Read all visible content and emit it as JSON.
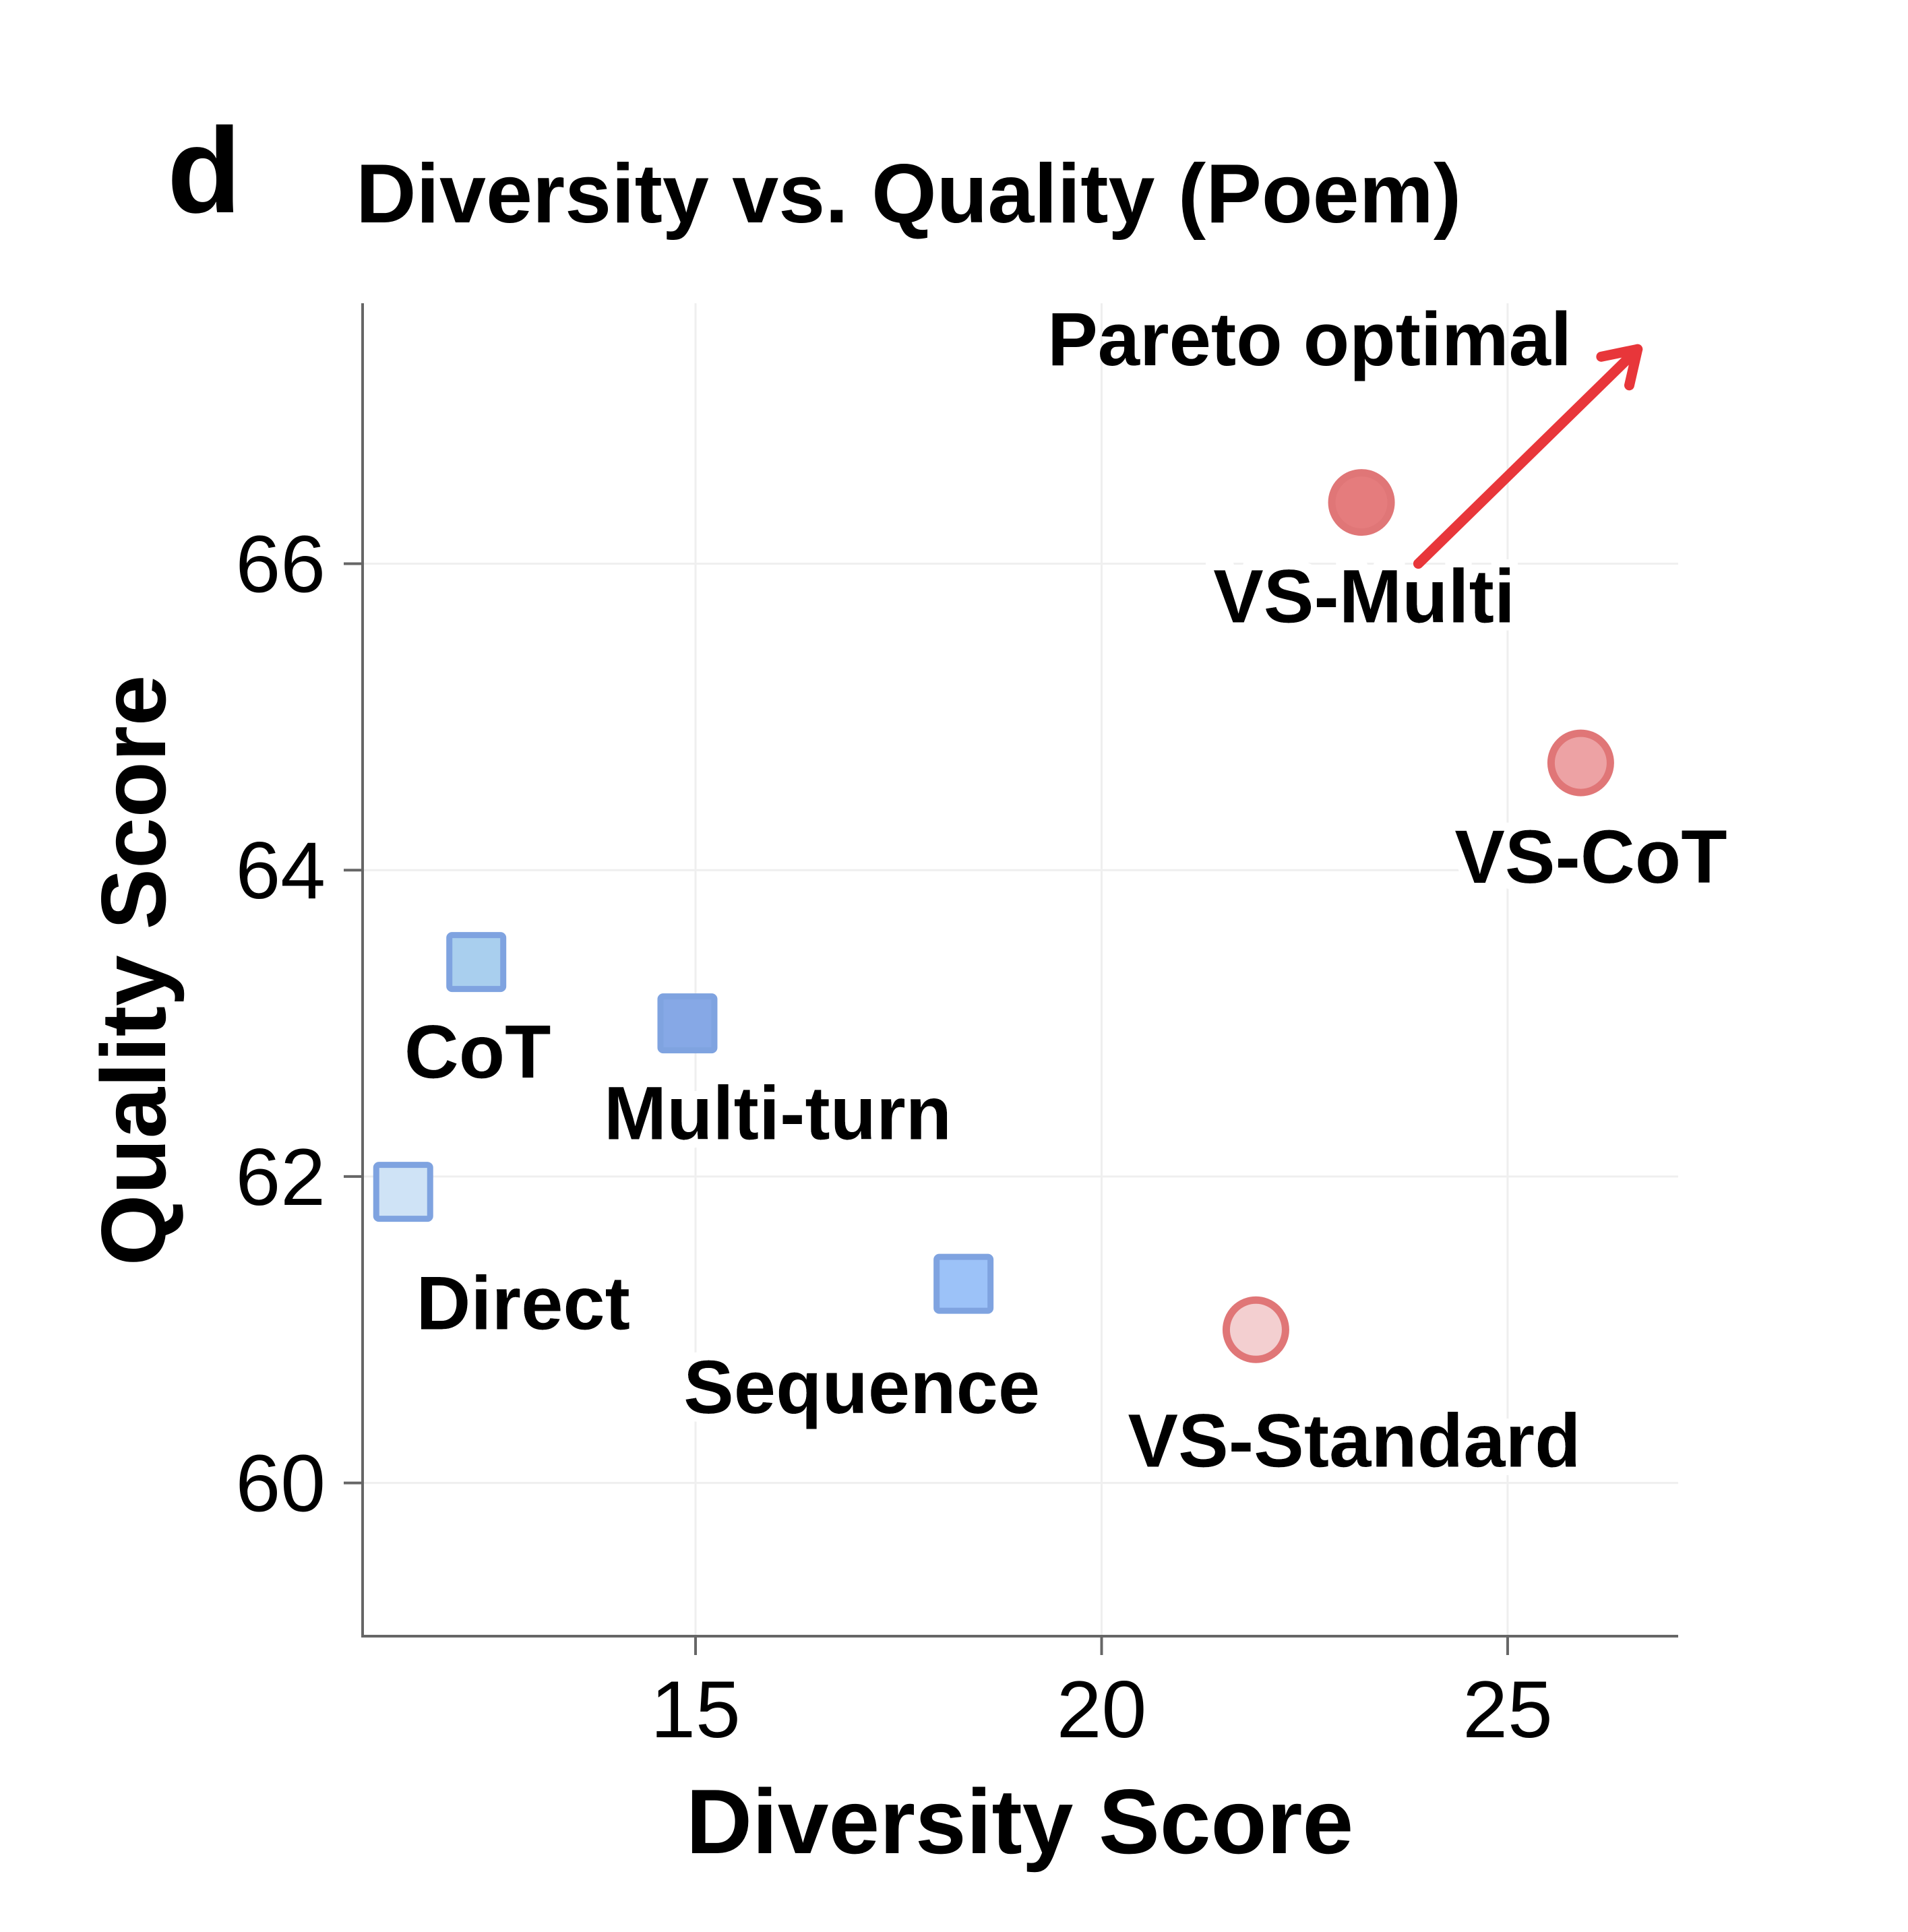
{
  "panel_letter": "d",
  "chart_data": {
    "type": "scatter",
    "title": "Diversity vs. Quality (Poem)",
    "xlabel": "Diversity Score",
    "ylabel": "Quality Score",
    "xlim": [
      10.9,
      27.1
    ],
    "ylim": [
      59.0,
      67.7
    ],
    "xticks": [
      15,
      20,
      25
    ],
    "yticks": [
      60,
      62,
      64,
      66
    ],
    "grid": true,
    "points": [
      {
        "label": "Direct",
        "x": 11.4,
        "y": 61.9,
        "marker": "square",
        "fill": "#cfe3f6",
        "edge": "#7fa3e0"
      },
      {
        "label": "CoT",
        "x": 12.3,
        "y": 63.4,
        "marker": "square",
        "fill": "#a9cfee",
        "edge": "#7fa3e0"
      },
      {
        "label": "Multi-turn",
        "x": 14.9,
        "y": 63.0,
        "marker": "square",
        "fill": "#86a8e6",
        "edge": "#7fa3e0"
      },
      {
        "label": "Sequence",
        "x": 18.3,
        "y": 61.3,
        "marker": "square",
        "fill": "#9cc2f8",
        "edge": "#7fa3e0"
      },
      {
        "label": "VS-Standard",
        "x": 21.9,
        "y": 61.0,
        "marker": "circle",
        "fill": "#f3cfd0",
        "edge": "#e07677"
      },
      {
        "label": "VS-CoT",
        "x": 25.9,
        "y": 64.7,
        "marker": "circle",
        "fill": "#eda2a4",
        "edge": "#e07677"
      },
      {
        "label": "VS-Multi",
        "x": 23.2,
        "y": 66.4,
        "marker": "circle",
        "fill": "#e57c7d",
        "edge": "#e07677"
      }
    ],
    "annotation": {
      "text": "Pareto optimal",
      "color": "#dd0000",
      "arrow_color": "#e8363a",
      "arrow_from": [
        23.9,
        66.0
      ],
      "arrow_to": [
        26.6,
        67.4
      ]
    }
  }
}
